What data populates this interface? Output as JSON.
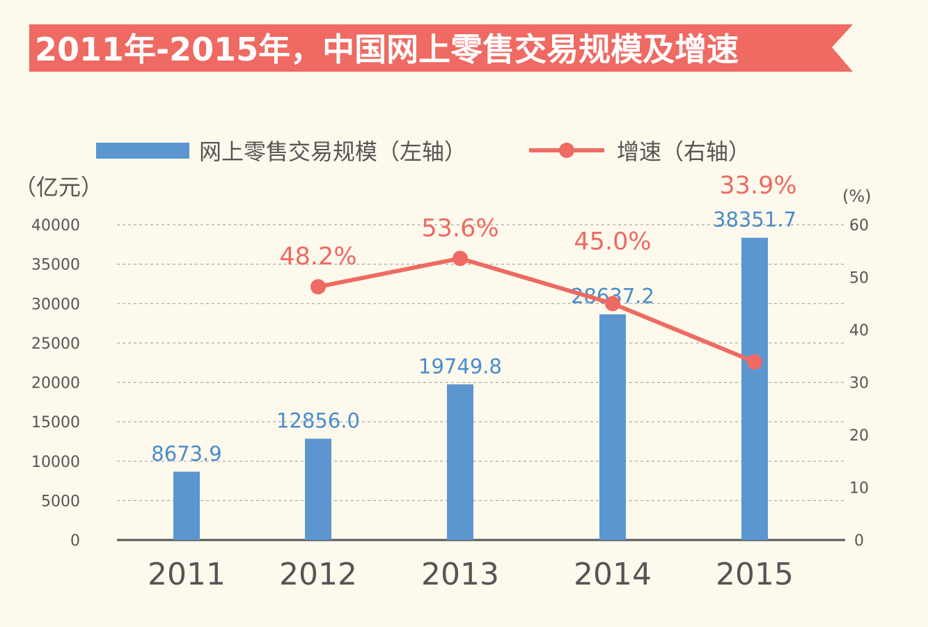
{
  "colors": {
    "background": "#fdf9ec",
    "banner": "#ee6a62",
    "banner_text": "#ffffff",
    "bar": "#5b96d0",
    "bar_label": "#4a8ccb",
    "line": "#ee6a62",
    "line_label": "#ee6a62",
    "axis_text": "#555555",
    "grid": "#aaaaaa"
  },
  "chart_data": {
    "type": "bar",
    "title": "2011年-2015年，中国网上零售交易规模及增速",
    "categories": [
      "2011",
      "2012",
      "2013",
      "2014",
      "2015"
    ],
    "series": [
      {
        "name": "网上零售交易规模（左轴）",
        "type": "bar",
        "axis": "left",
        "values": [
          8673.9,
          12856.0,
          19749.8,
          28637.2,
          38351.7
        ],
        "labels": [
          "8673.9",
          "12856.0",
          "19749.8",
          "28637.2",
          "38351.7"
        ]
      },
      {
        "name": "增速（右轴）",
        "type": "line",
        "axis": "right",
        "values": [
          null,
          48.2,
          53.6,
          45.0,
          33.9
        ],
        "labels": [
          "",
          "48.2%",
          "53.6%",
          "45.0%",
          "33.9%"
        ]
      }
    ],
    "y_left": {
      "label": "（亿元）",
      "range": [
        0,
        40000
      ],
      "ticks": [
        "40000",
        "35000",
        "30000",
        "25000",
        "20000",
        "15000",
        "10000",
        "5000",
        "0"
      ]
    },
    "y_right": {
      "label": "(%)",
      "range": [
        0,
        60
      ],
      "ticks": [
        "60",
        "50",
        "40",
        "30",
        "20",
        "10",
        "0"
      ]
    },
    "grid": true,
    "legend_position": "top"
  }
}
